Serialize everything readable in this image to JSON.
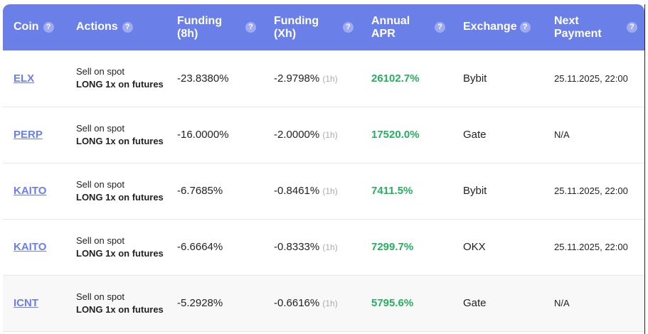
{
  "headers": {
    "coin": "Coin",
    "actions": "Actions",
    "funding8h": "Funding (8h)",
    "fundingxh": "Funding (Xh)",
    "apr": "Annual APR",
    "exchange": "Exchange",
    "next": "Next Payment",
    "help": "?"
  },
  "colors": {
    "header": "#6a7fe8",
    "apr_positive": "#27ae60"
  },
  "rows": [
    {
      "coin": "ELX",
      "action_1": "Sell on spot",
      "action_2": "LONG 1x on futures",
      "f8": "-23.8380%",
      "fx": "-2.9798%",
      "interval": "(1h)",
      "apr": "26102.7%",
      "exchange": "Bybit",
      "next": "25.11.2025, 22:00"
    },
    {
      "coin": "PERP",
      "action_1": "Sell on spot",
      "action_2": "LONG 1x on futures",
      "f8": "-16.0000%",
      "fx": "-2.0000%",
      "interval": "(1h)",
      "apr": "17520.0%",
      "exchange": "Gate",
      "next": "N/A"
    },
    {
      "coin": "KAITO",
      "action_1": "Sell on spot",
      "action_2": "LONG 1x on futures",
      "f8": "-6.7685%",
      "fx": "-0.8461%",
      "interval": "(1h)",
      "apr": "7411.5%",
      "exchange": "Bybit",
      "next": "25.11.2025, 22:00"
    },
    {
      "coin": "KAITO",
      "action_1": "Sell on spot",
      "action_2": "LONG 1x on futures",
      "f8": "-6.6664%",
      "fx": "-0.8333%",
      "interval": "(1h)",
      "apr": "7299.7%",
      "exchange": "OKX",
      "next": "25.11.2025, 22:00"
    },
    {
      "coin": "ICNT",
      "action_1": "Sell on spot",
      "action_2": "LONG 1x on futures",
      "f8": "-5.2928%",
      "fx": "-0.6616%",
      "interval": "(1h)",
      "apr": "5795.6%",
      "exchange": "Gate",
      "next": "N/A"
    }
  ]
}
